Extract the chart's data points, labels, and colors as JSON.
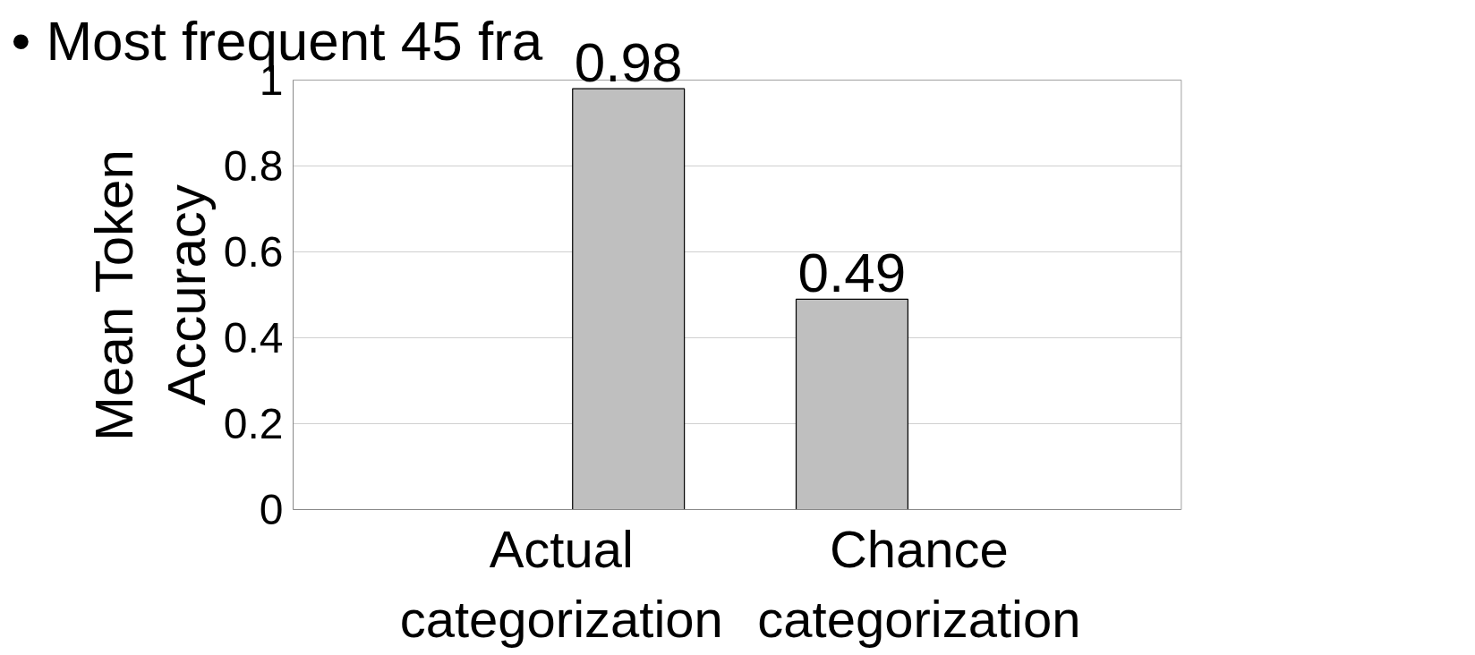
{
  "chart_data": {
    "type": "bar",
    "categories": [
      "Actual\ncategorization",
      "Chance\ncategorization"
    ],
    "values": [
      0.98,
      0.49
    ],
    "color": "#bfbfbf",
    "ylim": [
      0,
      1
    ],
    "yticks": [
      0,
      0.2,
      0.4,
      0.6,
      0.8,
      1
    ],
    "ylabel": "Mean Token\nAccuracy",
    "data_labels": true,
    "grid": "y",
    "annotations": [
      {
        "text": "•  Most frequent 45 fra"
      }
    ]
  }
}
